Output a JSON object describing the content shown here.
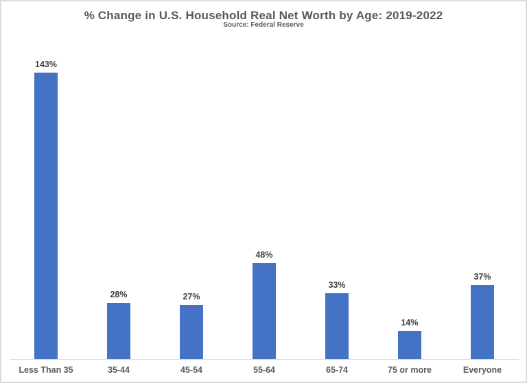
{
  "header": {
    "title": "% Change in U.S. Household Real Net Worth by Age: 2019-2022",
    "subtitle": "Source: Federal Reserve"
  },
  "chart_data": {
    "type": "bar",
    "title": "% Change in U.S. Household Real Net Worth by Age: 2019-2022",
    "subtitle": "Source: Federal Reserve",
    "categories": [
      "Less Than 35",
      "35-44",
      "45-54",
      "55-64",
      "65-74",
      "75 or more",
      "Everyone"
    ],
    "values": [
      143,
      28,
      27,
      48,
      33,
      14,
      37
    ],
    "data_labels": [
      "143%",
      "28%",
      "27%",
      "48%",
      "33%",
      "14%",
      "37%"
    ],
    "unit": "%",
    "xlabel": "",
    "ylabel": "",
    "ylim": [
      0,
      150
    ],
    "grid": false,
    "legend": false,
    "colors": {
      "bar": "#4472C4",
      "data_label": "#404040",
      "category_label": "#595959",
      "title": "#595959",
      "axis_line": "#D9D9D9",
      "frame_border": "#DBDBDB",
      "background": "#FFFFFF"
    }
  }
}
